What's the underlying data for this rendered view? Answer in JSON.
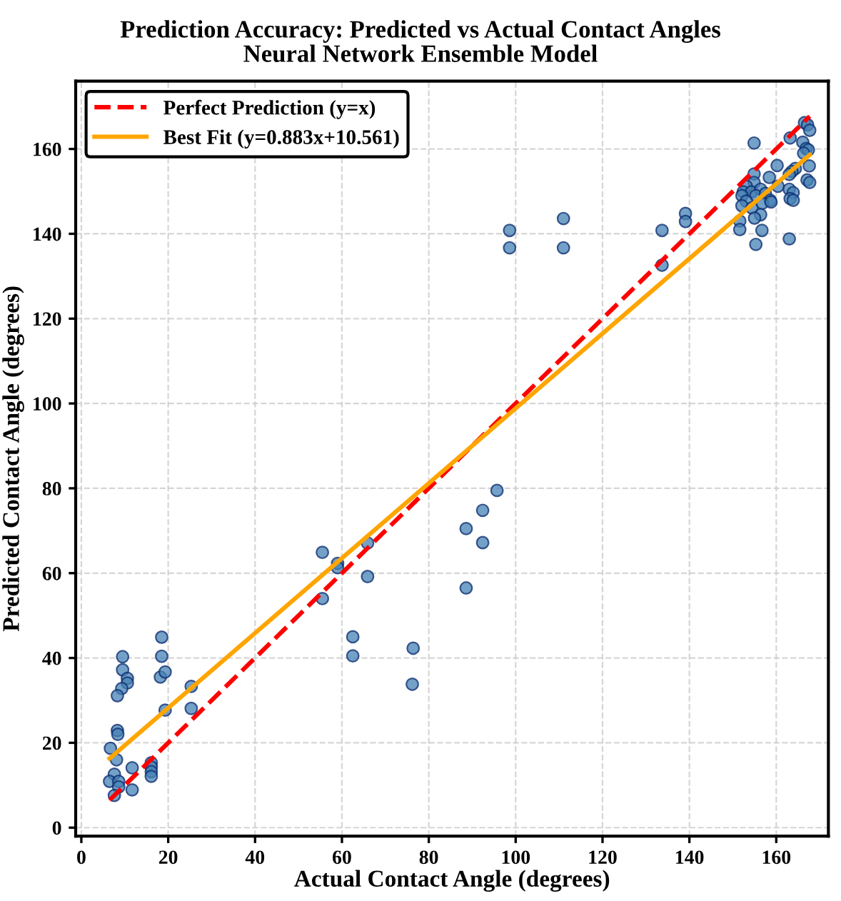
{
  "chart_data": {
    "type": "scatter",
    "title": "Prediction Accuracy: Predicted vs Actual Contact Angles",
    "subtitle": "Neural Network Ensemble Model",
    "xlabel": "Actual Contact Angle (degrees)",
    "ylabel": "Predicted Contact Angle (degrees)",
    "xlim": [
      -1.3,
      172
    ],
    "ylim": [
      -2,
      176
    ],
    "xticks": [
      0,
      20,
      40,
      60,
      80,
      100,
      120,
      140,
      160
    ],
    "yticks": [
      0,
      20,
      40,
      60,
      80,
      100,
      120,
      140,
      160
    ],
    "grid": true,
    "legend": "top left",
    "series": [
      {
        "color": "#4682b4",
        "marker": "circle",
        "x": [
          18.5,
          18.5,
          9.5,
          9.5,
          10.6,
          10.6,
          9.3,
          8.3,
          18.2,
          19.3,
          25.3,
          19.3,
          25.3,
          8.3,
          8.4,
          6.7,
          8.1,
          11.7,
          16.1,
          16.1,
          16.1,
          16.1,
          7.6,
          6.5,
          8.6,
          8.6,
          7.6,
          11.7,
          55.5,
          59.0,
          59.0,
          65.9,
          55.5,
          65.9,
          62.5,
          62.5,
          76.4,
          76.2,
          88.6,
          92.4,
          92.4,
          95.7,
          88.6,
          98.6,
          98.6,
          111.0,
          111.0,
          133.7,
          133.7,
          139.1,
          139.1,
          154.9,
          151.6,
          151.6,
          155.3,
          156.7,
          163.0,
          166.5,
          167.2,
          167.7,
          163.2,
          166.1,
          166.9,
          167.4,
          166.3,
          160.2,
          167.6,
          164.4,
          163.6,
          163.0,
          167.1,
          167.7,
          154.9,
          158.4,
          154.9,
          153.1,
          160.4,
          152.4,
          154.3,
          156.4,
          163.0,
          163.9,
          152.1,
          155.3,
          157.5,
          153.1,
          158.6,
          163.2,
          152.1,
          154.4,
          156.8,
          158.8,
          163.9,
          156.4,
          155.0
        ],
        "values": [
          44.9,
          40.4,
          40.3,
          37.2,
          35.2,
          34.1,
          32.8,
          31.1,
          35.5,
          36.7,
          33.3,
          27.7,
          28.1,
          22.9,
          22.0,
          18.7,
          16.0,
          14.1,
          15.3,
          14.3,
          13.2,
          12.1,
          12.6,
          10.9,
          10.9,
          9.6,
          7.6,
          8.9,
          64.9,
          62.3,
          61.3,
          67.1,
          54.0,
          59.2,
          45.0,
          40.5,
          42.3,
          33.8,
          70.5,
          74.8,
          67.2,
          79.5,
          56.5,
          140.8,
          136.7,
          143.6,
          136.7,
          140.8,
          132.6,
          144.8,
          142.9,
          161.4,
          143.0,
          141.0,
          137.5,
          140.8,
          138.8,
          166.2,
          165.7,
          164.4,
          162.6,
          161.6,
          160.1,
          159.8,
          159.0,
          156.1,
          156.0,
          155.4,
          154.7,
          154.0,
          152.7,
          152.1,
          154.1,
          153.3,
          152.1,
          151.2,
          151.2,
          149.9,
          149.9,
          150.5,
          150.5,
          149.7,
          149.0,
          149.0,
          149.5,
          147.7,
          147.9,
          148.3,
          146.6,
          146.1,
          147.2,
          147.5,
          147.9,
          144.5,
          143.7
        ]
      },
      {
        "type": "line",
        "name": "Perfect Prediction (y=x)",
        "color": "#ff0000",
        "line_style": "dashed",
        "x": [
          6.5,
          167.7
        ],
        "values": [
          6.5,
          167.7
        ]
      },
      {
        "type": "line",
        "name": "Best Fit (y=0.883x+10.561)",
        "color": "#ffa500",
        "line_style": "solid",
        "x": [
          6.5,
          167.7
        ],
        "values": [
          16.3,
          158.6
        ]
      }
    ]
  }
}
